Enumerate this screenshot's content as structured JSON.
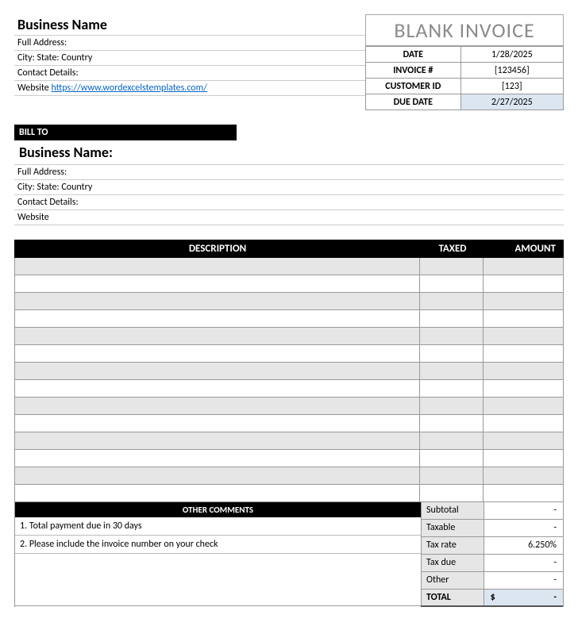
{
  "header": {
    "title": "BLANK INVOICE",
    "title_color": "#8a8a8a",
    "title_fontsize": 26
  },
  "business": {
    "name": "Business Name",
    "full_address_label": "Full Address:",
    "city_state_label": "City: State: Country",
    "contact_label": "Contact Details:",
    "website_label": "Website",
    "website_url": "https://www.wordexcelstemplates.com/"
  },
  "meta": {
    "rows": [
      {
        "label": "DATE",
        "value": "1/28/2025",
        "highlight": false
      },
      {
        "label": "INVOICE #",
        "value": "[123456]",
        "highlight": false
      },
      {
        "label": "CUSTOMER ID",
        "value": "[123]",
        "highlight": false
      },
      {
        "label": "DUE DATE",
        "value": "2/27/2025",
        "highlight": true
      }
    ]
  },
  "billto": {
    "header": "BILL TO",
    "name": "Business Name:",
    "lines": [
      "Full Address:",
      "City: State: Country",
      "Contact Details:",
      "Website"
    ]
  },
  "items": {
    "columns": {
      "description": "DESCRIPTION",
      "taxed": "TAXED",
      "amount": "AMOUNT"
    },
    "row_count": 14,
    "alt_row_bg": "#e6e6e6",
    "border_color": "#999999"
  },
  "comments": {
    "header": "OTHER COMMENTS",
    "lines": [
      "1. Total payment due in 30 days",
      "2. Please include the invoice number on your check"
    ]
  },
  "totals": {
    "rows": [
      {
        "label": "Subtotal",
        "value": "-"
      },
      {
        "label": "Taxable",
        "value": "-"
      },
      {
        "label": "Tax rate",
        "value": "6.250%"
      },
      {
        "label": "Tax due",
        "value": "-"
      },
      {
        "label": "Other",
        "value": "-"
      }
    ],
    "final": {
      "label": "TOTAL",
      "currency": "$",
      "value": "-"
    },
    "highlight_bg": "#dce6f1",
    "label_bg": "#e6e6e6"
  },
  "colors": {
    "black": "#000000",
    "grid": "#999999",
    "link": "#0563c1"
  }
}
